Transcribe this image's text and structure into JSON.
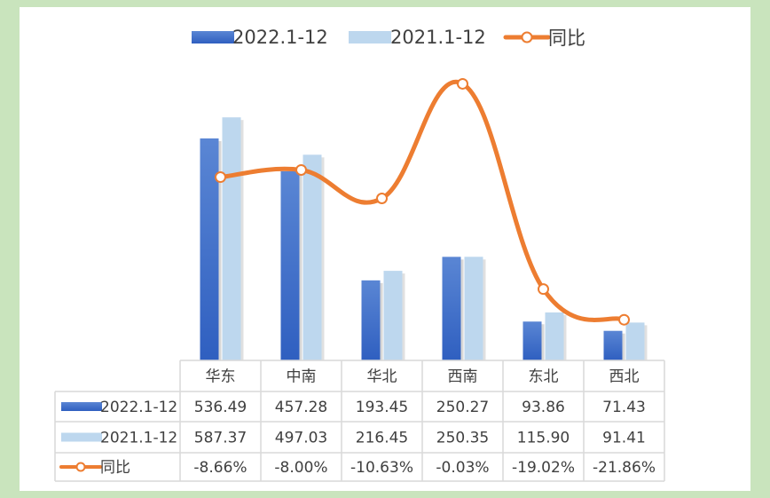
{
  "chart_data": {
    "type": "bar",
    "categories": [
      "华东",
      "中南",
      "华北",
      "西南",
      "东北",
      "西北"
    ],
    "series": [
      {
        "name": "2022.1-12",
        "values": [
          536.49,
          457.28,
          193.45,
          250.27,
          93.86,
          71.43
        ],
        "labels": [
          "536.49",
          "457.28",
          "193.45",
          "250.27",
          "93.86",
          "71.43"
        ]
      },
      {
        "name": "2021.1-12",
        "values": [
          587.37,
          497.03,
          216.45,
          250.35,
          115.9,
          91.41
        ],
        "labels": [
          "587.37",
          "497.03",
          "216.45",
          "250.35",
          "115.90",
          "91.41"
        ]
      }
    ],
    "line_series": {
      "name": "同比",
      "values": [
        -8.66,
        -8.0,
        -10.63,
        -0.03,
        -19.02,
        -21.86
      ],
      "labels": [
        "-8.66%",
        "-8.00%",
        "-10.63%",
        "-0.03%",
        "-19.02%",
        "-21.86%"
      ],
      "axis": "secondary"
    },
    "legend_position": "top",
    "data_table": true,
    "grid": false,
    "colors": {
      "series_2022": "#3a6ccc",
      "series_2021": "#bdd7ee",
      "line": "#ed7d31",
      "table_border": "#d9d9d9"
    }
  }
}
